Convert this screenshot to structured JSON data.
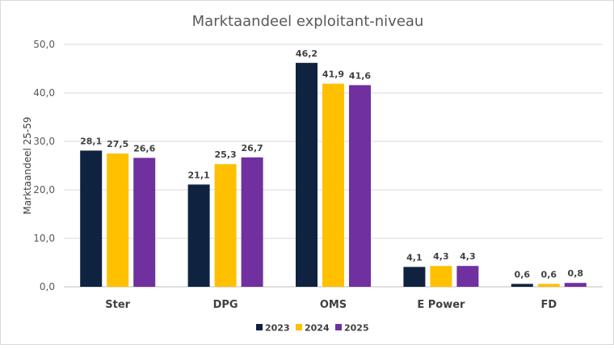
{
  "chart_data": {
    "type": "bar",
    "title": "Marktaandeel exploitant-niveau",
    "xlabel": "",
    "ylabel": "Marktaandeel 25-59",
    "categories": [
      "Ster",
      "DPG",
      "OMS",
      "E Power",
      "FD"
    ],
    "series": [
      {
        "name": "2023",
        "color": "#0f2340",
        "values": [
          28.1,
          21.1,
          46.2,
          4.1,
          0.6
        ],
        "labels": [
          "28,1",
          "21,1",
          "46,2",
          "4,1",
          "0,6"
        ]
      },
      {
        "name": "2024",
        "color": "#ffc000",
        "values": [
          27.5,
          25.3,
          41.9,
          4.3,
          0.6
        ],
        "labels": [
          "27,5",
          "25,3",
          "41,9",
          "4,3",
          "0,6"
        ]
      },
      {
        "name": "2025",
        "color": "#7030a0",
        "values": [
          26.6,
          26.7,
          41.6,
          4.3,
          0.8
        ],
        "labels": [
          "26,6",
          "26,7",
          "41,6",
          "4,3",
          "0,8"
        ]
      }
    ],
    "ylim": [
      0,
      50
    ],
    "yticks": [
      0,
      10,
      20,
      30,
      40,
      50
    ],
    "ytick_labels": [
      "0,0",
      "10,0",
      "20,0",
      "30,0",
      "40,0",
      "50,0"
    ],
    "grid": true,
    "legend": "bottom"
  }
}
